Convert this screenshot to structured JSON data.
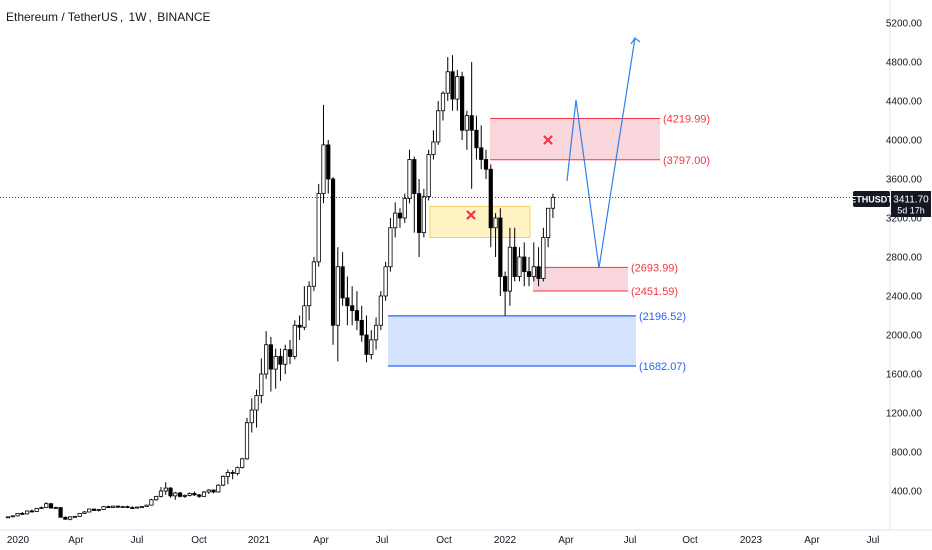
{
  "header": {
    "symbol": "Ethereum / TetherUS",
    "interval": "1W",
    "exchange": "BINANCE"
  },
  "price_tag": {
    "ticker": "ETHUSDT",
    "price": "3411.70",
    "countdown": "5d 17h",
    "color": "#131722"
  },
  "colors": {
    "up_candle": "#ffffff",
    "down_candle": "#000000",
    "candle_border": "#000000",
    "red_zone_fill": "#f9d6dc",
    "red_zone_line": "#f23645",
    "red_label": "#f23645",
    "blue_zone_fill": "#d5e2fb",
    "blue_zone_line": "#2962ff",
    "blue_label": "#2962ff",
    "yellow_zone_fill": "#fff3c4",
    "yellow_zone_border": "#f5c542",
    "projection": "#2f80ed",
    "cross": "#f23645"
  },
  "zones": {
    "upper_red": {
      "top": "(4219.99)",
      "bottom": "(3797.00)",
      "top_value": 4219.99,
      "bottom_value": 3797.0
    },
    "lower_red": {
      "top": "(2693.99)",
      "bottom": "(2451.59)",
      "top_value": 2693.99,
      "bottom_value": 2451.59
    },
    "blue": {
      "top": "(2196.52)",
      "bottom": "(1682.07)",
      "top_value": 2196.52,
      "bottom_value": 1682.07
    },
    "yellow": {
      "top_value": 3320,
      "bottom_value": 3000
    }
  },
  "chart_data": {
    "type": "candlestick",
    "x_axis_labels": [
      "2020",
      "Apr",
      "Jul",
      "Oct",
      "2021",
      "Apr",
      "Jul",
      "Oct",
      "2022",
      "Apr",
      "Jul",
      "Oct",
      "2023",
      "Apr",
      "Jul"
    ],
    "y_axis_labels": [
      "5200.00",
      "4800.00",
      "4400.00",
      "4000.00",
      "3600.00",
      "3200.00",
      "2800.00",
      "2400.00",
      "2000.00",
      "1600.00",
      "1200.00",
      "800.00",
      "400.00"
    ],
    "ylim": [
      0,
      5400
    ],
    "last_price": 3411.7,
    "candles_weekly": [
      [
        130,
        140,
        125,
        135
      ],
      [
        135,
        150,
        130,
        145
      ],
      [
        145,
        175,
        140,
        170
      ],
      [
        170,
        185,
        160,
        165
      ],
      [
        165,
        200,
        160,
        195
      ],
      [
        195,
        210,
        185,
        190
      ],
      [
        190,
        225,
        185,
        220
      ],
      [
        220,
        240,
        215,
        230
      ],
      [
        230,
        285,
        225,
        270
      ],
      [
        270,
        275,
        220,
        225
      ],
      [
        225,
        240,
        215,
        230
      ],
      [
        230,
        235,
        140,
        130
      ],
      [
        130,
        140,
        105,
        110
      ],
      [
        110,
        140,
        100,
        135
      ],
      [
        135,
        145,
        125,
        140
      ],
      [
        140,
        175,
        135,
        170
      ],
      [
        170,
        195,
        165,
        185
      ],
      [
        185,
        220,
        180,
        215
      ],
      [
        215,
        215,
        195,
        200
      ],
      [
        200,
        215,
        190,
        210
      ],
      [
        210,
        245,
        205,
        240
      ],
      [
        240,
        250,
        225,
        230
      ],
      [
        230,
        250,
        225,
        245
      ],
      [
        245,
        250,
        225,
        235
      ],
      [
        235,
        245,
        225,
        240
      ],
      [
        240,
        250,
        225,
        230
      ],
      [
        230,
        245,
        220,
        225
      ],
      [
        225,
        240,
        220,
        235
      ],
      [
        235,
        245,
        225,
        240
      ],
      [
        240,
        260,
        235,
        255
      ],
      [
        255,
        320,
        250,
        310
      ],
      [
        310,
        350,
        300,
        345
      ],
      [
        345,
        440,
        335,
        400
      ],
      [
        400,
        490,
        360,
        430
      ],
      [
        430,
        440,
        330,
        350
      ],
      [
        350,
        390,
        310,
        380
      ],
      [
        380,
        390,
        335,
        345
      ],
      [
        345,
        365,
        330,
        355
      ],
      [
        355,
        385,
        345,
        375
      ],
      [
        375,
        395,
        350,
        360
      ],
      [
        360,
        370,
        330,
        345
      ],
      [
        345,
        400,
        340,
        390
      ],
      [
        390,
        420,
        370,
        410
      ],
      [
        410,
        415,
        375,
        390
      ],
      [
        390,
        470,
        385,
        460
      ],
      [
        460,
        560,
        450,
        550
      ],
      [
        550,
        620,
        470,
        590
      ],
      [
        590,
        615,
        520,
        580
      ],
      [
        580,
        650,
        560,
        640
      ],
      [
        640,
        740,
        630,
        730
      ],
      [
        730,
        1150,
        720,
        1100
      ],
      [
        1100,
        1350,
        1000,
        1230
      ],
      [
        1230,
        1440,
        1050,
        1380
      ],
      [
        1380,
        1760,
        1300,
        1600
      ],
      [
        1600,
        2040,
        1550,
        1900
      ],
      [
        1900,
        1980,
        1420,
        1650
      ],
      [
        1650,
        1860,
        1450,
        1780
      ],
      [
        1780,
        1860,
        1530,
        1700
      ],
      [
        1700,
        1900,
        1600,
        1850
      ],
      [
        1850,
        1950,
        1700,
        1780
      ],
      [
        1780,
        2150,
        1750,
        2100
      ],
      [
        2100,
        2200,
        1950,
        2080
      ],
      [
        2080,
        2500,
        2050,
        2300
      ],
      [
        2300,
        2550,
        2150,
        2500
      ],
      [
        2500,
        2800,
        2450,
        2750
      ],
      [
        2750,
        3550,
        2700,
        3450
      ],
      [
        3450,
        4360,
        3350,
        3950
      ],
      [
        3950,
        4000,
        3450,
        3600
      ],
      [
        3600,
        3620,
        1900,
        2100
      ],
      [
        2100,
        2900,
        1730,
        2700
      ],
      [
        2700,
        2850,
        2300,
        2380
      ],
      [
        2380,
        2600,
        2100,
        2300
      ],
      [
        2300,
        2500,
        2100,
        2250
      ],
      [
        2250,
        2450,
        2050,
        2150
      ],
      [
        2150,
        2300,
        1930,
        2000
      ],
      [
        2000,
        2200,
        1720,
        1800
      ],
      [
        1800,
        2050,
        1750,
        1950
      ],
      [
        1950,
        2180,
        1850,
        2100
      ],
      [
        2100,
        2450,
        2050,
        2400
      ],
      [
        2400,
        2750,
        2350,
        2700
      ],
      [
        2700,
        3200,
        2650,
        3100
      ],
      [
        3100,
        3360,
        3000,
        3250
      ],
      [
        3250,
        3300,
        3100,
        3200
      ],
      [
        3200,
        3450,
        3150,
        3400
      ],
      [
        3400,
        3900,
        3350,
        3800
      ],
      [
        3800,
        3830,
        3050,
        3450
      ],
      [
        3450,
        3600,
        2800,
        3050
      ],
      [
        3050,
        3500,
        3000,
        3420
      ],
      [
        3420,
        3900,
        3380,
        3850
      ],
      [
        3850,
        4100,
        3800,
        3980
      ],
      [
        3980,
        4400,
        3950,
        4300
      ],
      [
        4300,
        4500,
        4200,
        4480
      ],
      [
        4480,
        4850,
        4400,
        4700
      ],
      [
        4700,
        4870,
        4300,
        4420
      ],
      [
        4420,
        4720,
        4300,
        4650
      ],
      [
        4650,
        4700,
        4000,
        4100
      ],
      [
        4100,
        4300,
        3900,
        4250
      ],
      [
        4250,
        4800,
        3500,
        4100
      ],
      [
        4100,
        4250,
        3800,
        3920
      ],
      [
        3920,
        4150,
        3700,
        3800
      ],
      [
        3800,
        3900,
        3600,
        3700
      ],
      [
        3700,
        3750,
        2900,
        3100
      ],
      [
        3100,
        3250,
        2800,
        3200
      ],
      [
        3200,
        3300,
        2400,
        2600
      ],
      [
        2600,
        2650,
        2200,
        2450
      ],
      [
        2450,
        3100,
        2300,
        2900
      ],
      [
        2900,
        3100,
        2550,
        2600
      ],
      [
        2600,
        2900,
        2550,
        2800
      ],
      [
        2800,
        2950,
        2500,
        2650
      ],
      [
        2650,
        2800,
        2500,
        2600
      ],
      [
        2600,
        2950,
        2550,
        2700
      ],
      [
        2700,
        2900,
        2500,
        2580
      ],
      [
        2580,
        3100,
        2550,
        3000
      ],
      [
        3000,
        3200,
        2900,
        3300
      ],
      [
        3300,
        3450,
        3200,
        3411.7
      ]
    ],
    "projection_path_values": [
      {
        "week": 116,
        "price": 3600
      },
      {
        "week": 119,
        "price": 4400
      },
      {
        "week": 127,
        "price": 2680
      },
      {
        "week": 136,
        "price": 5100
      }
    ]
  }
}
